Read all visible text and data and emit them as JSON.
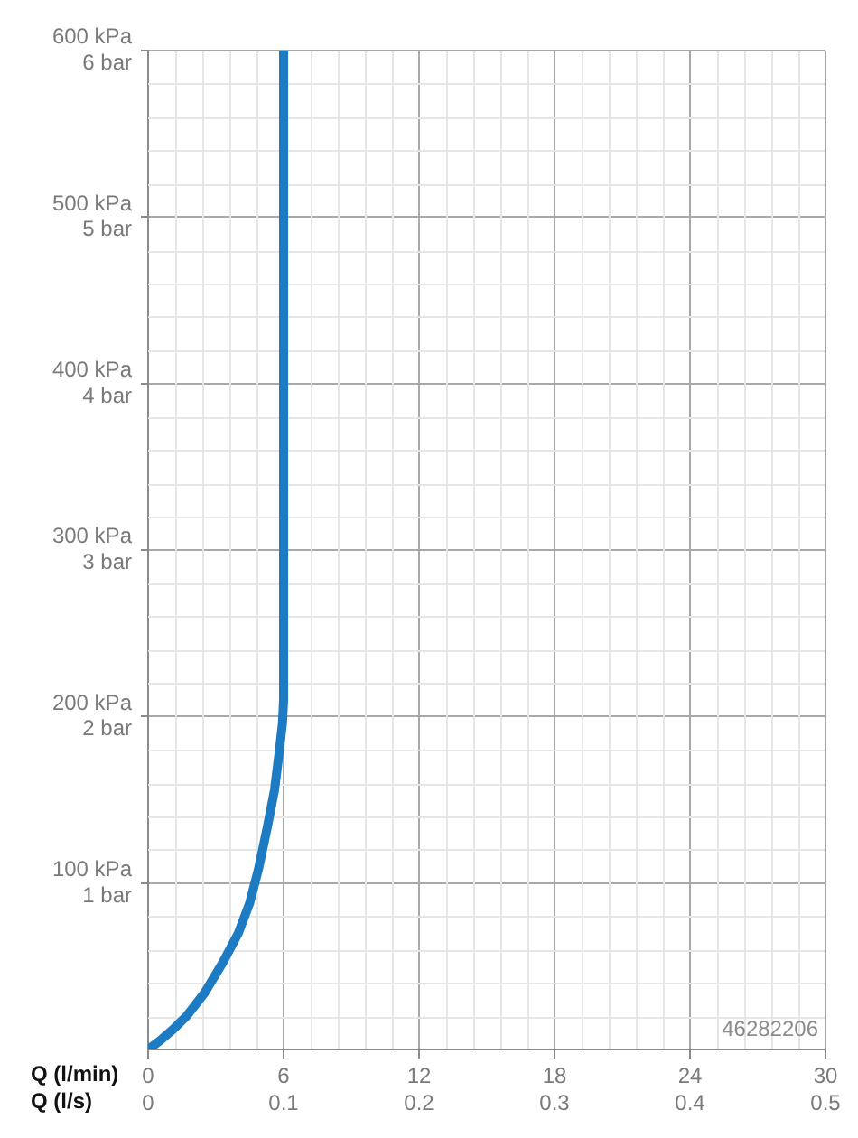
{
  "chart_data": {
    "type": "line",
    "xlabel": "Q (l/min)",
    "x2label": "Q (l/s)",
    "xlim": [
      0,
      30
    ],
    "xticks": [
      0,
      6,
      12,
      18,
      24,
      30
    ],
    "x2lim": [
      0,
      0.5
    ],
    "x2ticks": [
      0,
      0.1,
      0.2,
      0.3,
      0.4,
      0.5
    ],
    "ylim": [
      0,
      600
    ],
    "yticks": [
      {
        "value": 100,
        "label": "100 kPa"
      },
      {
        "value": 200,
        "label": "200 kPa"
      },
      {
        "value": 300,
        "label": "300 kPa"
      },
      {
        "value": 400,
        "label": "400 kPa"
      },
      {
        "value": 500,
        "label": "500 kPa"
      },
      {
        "value": 600,
        "label": "600 kPa"
      }
    ],
    "y2lim": [
      0,
      6
    ],
    "y2ticks": [
      {
        "value": 1,
        "label": "1 bar"
      },
      {
        "value": 2,
        "label": "2 bar"
      },
      {
        "value": 3,
        "label": "3 bar"
      },
      {
        "value": 4,
        "label": "4 bar"
      },
      {
        "value": 5,
        "label": "5 bar"
      },
      {
        "value": 6,
        "label": "6 bar"
      }
    ],
    "grid": true,
    "marker": "none",
    "line_style": "solid",
    "annotations": [
      "46282206"
    ],
    "series": [
      {
        "color": "#1c7bc2",
        "x": [
          0,
          0.5,
          1.1,
          1.7,
          2.5,
          3.3,
          4,
          4.5,
          4.9,
          5.3,
          5.6,
          5.8,
          5.95,
          6,
          6
        ],
        "values": [
          0,
          5,
          12,
          20,
          34,
          52,
          70,
          88,
          109,
          135,
          156,
          178,
          196,
          210,
          600
        ]
      }
    ]
  }
}
